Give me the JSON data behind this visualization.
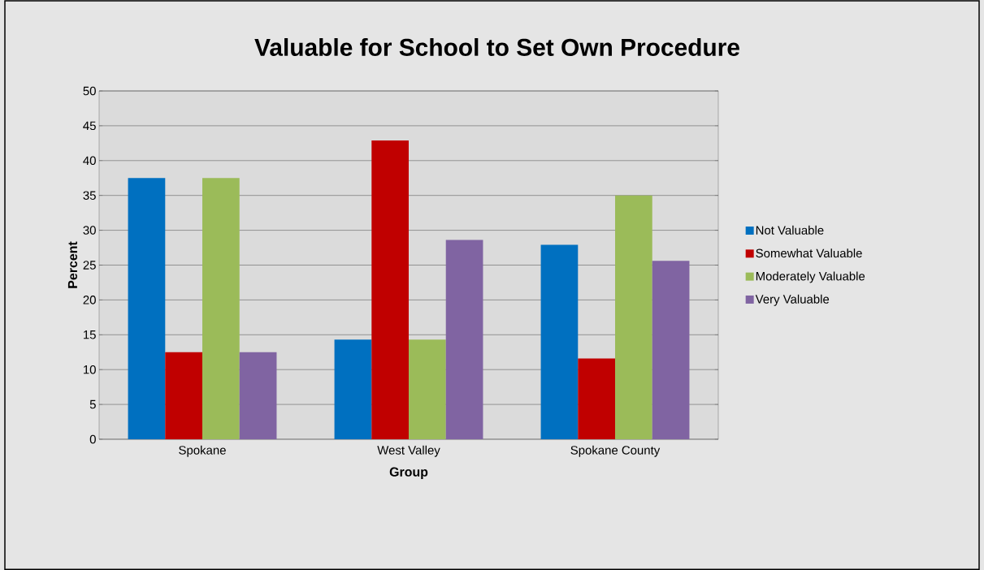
{
  "chart_data": {
    "type": "bar",
    "title": "Valuable for School to Set Own Procedure",
    "xlabel": "Group",
    "ylabel": "Percent",
    "categories": [
      "Spokane",
      "West Valley",
      "Spokane County"
    ],
    "series": [
      {
        "name": "Not Valuable",
        "color": "#0070c0",
        "values": [
          37.5,
          14.3,
          27.9
        ]
      },
      {
        "name": "Somewhat Valuable",
        "color": "#c00000",
        "values": [
          12.5,
          42.9,
          11.6
        ]
      },
      {
        "name": "Moderately Valuable",
        "color": "#9bbb59",
        "values": [
          37.5,
          14.3,
          35.0
        ]
      },
      {
        "name": "Very Valuable",
        "color": "#8064a2",
        "values": [
          12.5,
          28.6,
          25.6
        ]
      }
    ],
    "ylim": [
      0,
      50
    ],
    "yticks": [
      0,
      5,
      10,
      15,
      20,
      25,
      30,
      35,
      40,
      45,
      50
    ],
    "grid": "y",
    "legend": "right"
  }
}
